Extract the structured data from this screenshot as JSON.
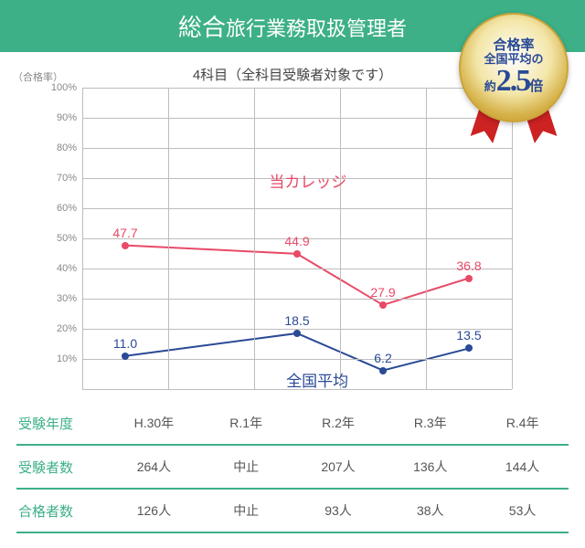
{
  "header": {
    "prefix_big": "総合",
    "rest": "旅行業務取扱管理者"
  },
  "subtitle": "4科目（全科目受験者対象です）",
  "yaxis_title": "（合格率）",
  "chart": {
    "type": "line",
    "ylim": [
      0,
      100
    ],
    "ytick_step": 10,
    "background": "#ffffff",
    "grid_color": "#bdbdbd",
    "categories": [
      "H.30年",
      "R.1年",
      "R.2年",
      "R.3年",
      "R.4年"
    ],
    "series": [
      {
        "name": "当カレッジ",
        "color": "#e84a67",
        "line_width": 2,
        "values": [
          47.7,
          null,
          44.9,
          27.9,
          36.8
        ],
        "label_pos": {
          "x_pct": 52,
          "y_pct": 30
        }
      },
      {
        "name": "全国平均",
        "color": "#2a4a96",
        "line_width": 2,
        "values": [
          11.0,
          null,
          18.5,
          6.2,
          13.5
        ],
        "label_pos": {
          "x_pct": 56,
          "y_pct": 96
        }
      }
    ]
  },
  "table": {
    "rows": [
      {
        "label": "受験年度",
        "cells": [
          "H.30年",
          "R.1年",
          "R.2年",
          "R.3年",
          "R.4年"
        ]
      },
      {
        "label": "受験者数",
        "cells": [
          "264人",
          "中止",
          "207人",
          "136人",
          "144人"
        ]
      },
      {
        "label": "合格者数",
        "cells": [
          "126人",
          "中止",
          "93人",
          "38人",
          "53人"
        ]
      }
    ]
  },
  "badge": {
    "line1": "合格率",
    "line2": "全国平均の",
    "prefix": "約",
    "number": "2.5",
    "suffix": "倍"
  }
}
